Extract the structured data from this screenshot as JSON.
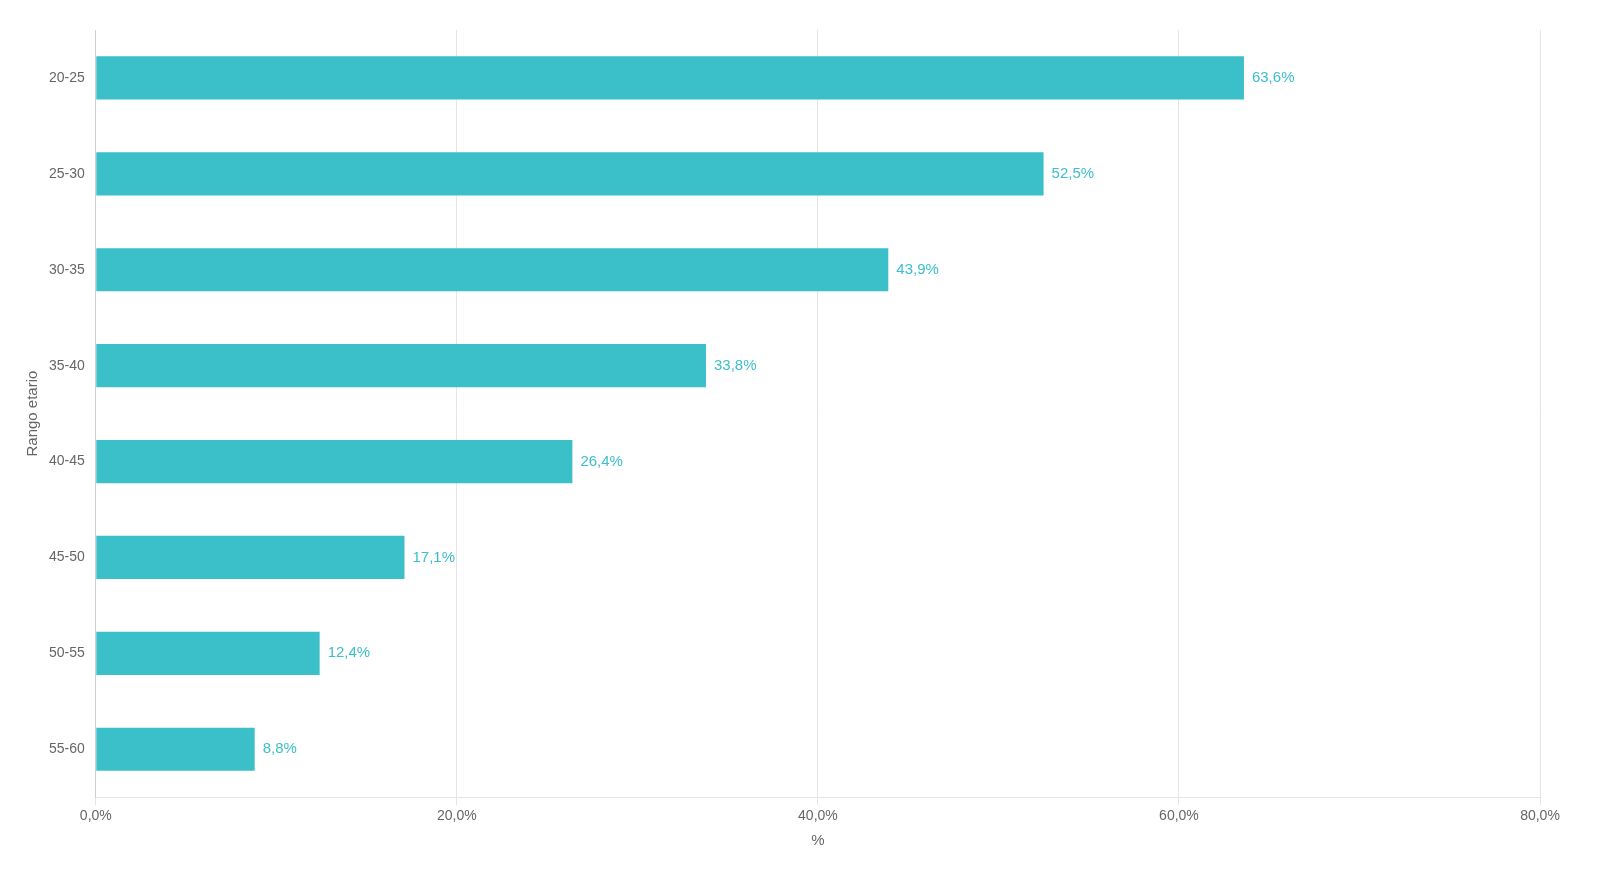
{
  "chart_data": {
    "type": "bar",
    "orientation": "horizontal",
    "categories": [
      "20-25",
      "25-30",
      "30-35",
      "35-40",
      "40-45",
      "45-50",
      "50-55",
      "55-60"
    ],
    "values": [
      63.6,
      52.5,
      43.9,
      33.8,
      26.4,
      17.1,
      12.4,
      8.8
    ],
    "value_labels": [
      "63,6%",
      "52,5%",
      "43,9%",
      "33,8%",
      "26,4%",
      "17,1%",
      "12,4%",
      "8,8%"
    ],
    "color": "#3bbfc9",
    "xlabel": "%",
    "ylabel": "Rango etario",
    "xlim": [
      0,
      80
    ],
    "xticks": [
      {
        "value": 0,
        "label": "0,0%"
      },
      {
        "value": 20,
        "label": "20,0%"
      },
      {
        "value": 40,
        "label": "40,0%"
      },
      {
        "value": 60,
        "label": "60,0%"
      },
      {
        "value": 80,
        "label": "80,0%"
      }
    ],
    "grid": true
  }
}
